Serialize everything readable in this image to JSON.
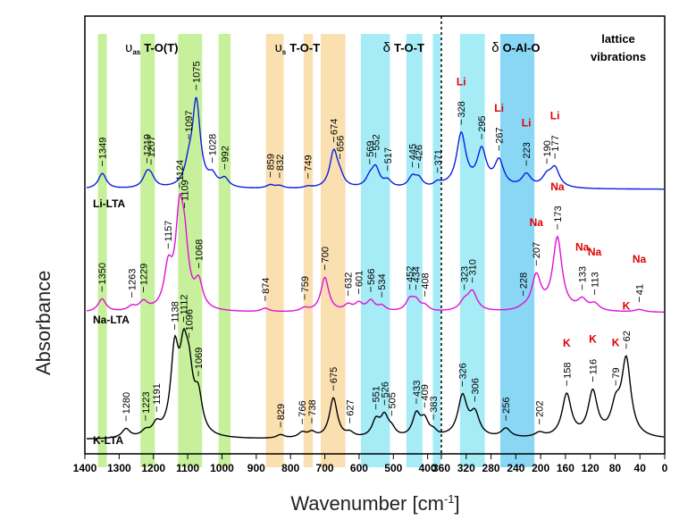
{
  "chart_data": {
    "type": "line",
    "title": "",
    "xlabel": "Wavenumber [cm⁻¹]",
    "xlabel_main": "Wavenumber [cm",
    "xlabel_sup": "-1",
    "xlabel_close": "]",
    "ylabel": "Absorbance",
    "xlim": [
      1400,
      0
    ],
    "axis_break": 360,
    "ticks_left": [
      1400,
      1300,
      1200,
      1100,
      1000,
      900,
      800,
      700,
      600,
      500,
      400,
      360
    ],
    "ticks_right": [
      320,
      280,
      240,
      200,
      160,
      120,
      80,
      40,
      0
    ],
    "regions": [
      {
        "label": "υas T-O(T)",
        "main": "T-O(T)",
        "greek": "υ",
        "sub": "as",
        "color": "#b8ec82"
      },
      {
        "label": "υs T-O-T",
        "main": "T-O-T",
        "greek": "υ",
        "sub": "s",
        "color": "#f9d79c"
      },
      {
        "label": "δ T-O-T",
        "main": "T-O-T",
        "greek": "δ",
        "color": "#8fe7f5"
      },
      {
        "label": "δ O-Al-O",
        "main": "O-Al-O",
        "greek": "δ",
        "color": "#6ccdf2"
      },
      {
        "label": "lattice vibrations",
        "line1": "lattice",
        "line2": "vibrations"
      }
    ],
    "bands": [
      {
        "region": 0,
        "from": 1362,
        "to": 1336
      },
      {
        "region": 0,
        "from": 1238,
        "to": 1196
      },
      {
        "region": 0,
        "from": 1128,
        "to": 1058
      },
      {
        "region": 0,
        "from": 1010,
        "to": 975
      },
      {
        "region": 1,
        "from": 872,
        "to": 820
      },
      {
        "region": 1,
        "from": 762,
        "to": 735
      },
      {
        "region": 1,
        "from": 712,
        "to": 640
      },
      {
        "region": 2,
        "from": 595,
        "to": 510
      },
      {
        "region": 2,
        "from": 462,
        "to": 415
      },
      {
        "region": 2,
        "from": 385,
        "to": 362
      },
      {
        "region": 2,
        "from": 330,
        "to": 290
      },
      {
        "region": 3,
        "from": 265,
        "to": 210
      }
    ],
    "series": [
      {
        "name": "Li-LTA",
        "color": "#0a1fe0",
        "baseline": 0.0,
        "offset": 2.2,
        "peaks": [
          1349,
          1219,
          1207,
          1097,
          1075,
          1028,
          992,
          859,
          832,
          749,
          674,
          656,
          569,
          552,
          517,
          445,
          426,
          371,
          328,
          295,
          267,
          223,
          190,
          177
        ],
        "heights": [
          0.18,
          0.15,
          0.1,
          0.2,
          1.0,
          0.12,
          0.1,
          0.04,
          0.03,
          0.02,
          0.42,
          0.1,
          0.1,
          0.22,
          0.08,
          0.12,
          0.1,
          0.06,
          0.62,
          0.42,
          0.3,
          0.15,
          0.12,
          0.22
        ],
        "cation_tag": "Li",
        "cation_peaks": [
          328,
          267,
          223,
          177
        ]
      },
      {
        "name": "Na-LTA",
        "color": "#e010d8",
        "baseline": 0.0,
        "offset": 1.1,
        "peaks": [
          1350,
          1263,
          1229,
          1157,
          1124,
          1109,
          1068,
          874,
          759,
          700,
          632,
          601,
          566,
          534,
          452,
          434,
          408,
          323,
          310,
          228,
          207,
          173,
          133,
          113,
          41
        ],
        "heights": [
          0.15,
          0.05,
          0.1,
          0.45,
          1.0,
          0.6,
          0.3,
          0.04,
          0.04,
          0.4,
          0.07,
          0.09,
          0.12,
          0.06,
          0.13,
          0.11,
          0.06,
          0.1,
          0.22,
          0.02,
          0.4,
          0.85,
          0.12,
          0.08,
          0.03
        ],
        "cation_tag": "Na",
        "cation_peaks": [
          207,
          173,
          133,
          113,
          41
        ]
      },
      {
        "name": "K-LTA",
        "color": "#000000",
        "baseline": 0.0,
        "offset": 0.0,
        "peaks": [
          1280,
          1223,
          1191,
          1138,
          1112,
          1096,
          1069,
          829,
          766,
          738,
          675,
          627,
          551,
          526,
          505,
          433,
          409,
          383,
          326,
          306,
          256,
          202,
          158,
          116,
          79,
          62
        ],
        "heights": [
          0.1,
          0.06,
          0.12,
          0.9,
          0.75,
          0.55,
          0.4,
          0.04,
          0.06,
          0.06,
          0.45,
          0.05,
          0.18,
          0.22,
          0.08,
          0.25,
          0.18,
          0.06,
          0.45,
          0.25,
          0.1,
          0.05,
          0.48,
          0.5,
          0.3,
          0.85
        ],
        "cation_tag": "K",
        "cation_peaks": [
          158,
          116,
          79,
          62
        ]
      }
    ]
  }
}
